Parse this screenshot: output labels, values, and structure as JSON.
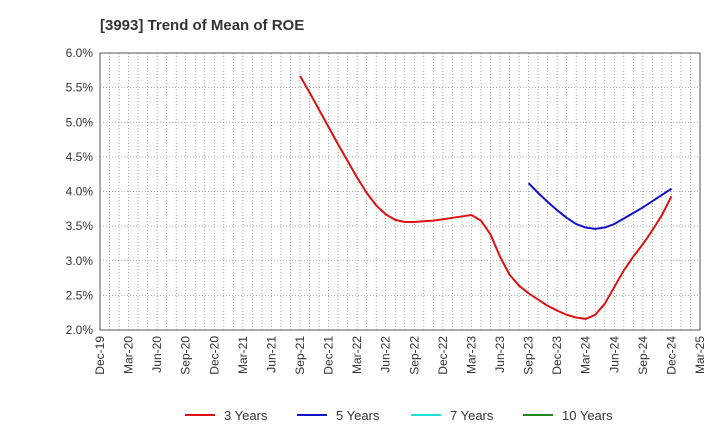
{
  "chart_data": {
    "type": "line",
    "title": "[3993]  Trend of Mean of ROE",
    "xlabel": "",
    "ylabel": "",
    "x_tick_labels": [
      "Dec-19",
      "Mar-20",
      "Jun-20",
      "Sep-20",
      "Dec-20",
      "Mar-21",
      "Jun-21",
      "Sep-21",
      "Dec-21",
      "Mar-22",
      "Jun-22",
      "Sep-22",
      "Dec-22",
      "Mar-23",
      "Jun-23",
      "Sep-23",
      "Dec-23",
      "Mar-24",
      "Jun-24",
      "Sep-24",
      "Dec-24",
      "Mar-25"
    ],
    "y_tick_labels": [
      "2.0%",
      "2.5%",
      "3.0%",
      "3.5%",
      "4.0%",
      "4.5%",
      "5.0%",
      "5.5%",
      "6.0%"
    ],
    "ylim": [
      2.0,
      6.0
    ],
    "grid": true,
    "legend_position": "bottom",
    "series": [
      {
        "name": "3 Years",
        "color": "#dd1111",
        "points": [
          [
            "Sep-21",
            5.67
          ],
          [
            "Oct-21",
            5.43
          ],
          [
            "Nov-21",
            5.18
          ],
          [
            "Dec-21",
            4.93
          ],
          [
            "Jan-22",
            4.68
          ],
          [
            "Feb-22",
            4.44
          ],
          [
            "Mar-22",
            4.2
          ],
          [
            "Apr-22",
            3.98
          ],
          [
            "May-22",
            3.8
          ],
          [
            "Jun-22",
            3.67
          ],
          [
            "Jul-22",
            3.59
          ],
          [
            "Aug-22",
            3.56
          ],
          [
            "Sep-22",
            3.56
          ],
          [
            "Oct-22",
            3.57
          ],
          [
            "Nov-22",
            3.58
          ],
          [
            "Dec-22",
            3.6
          ],
          [
            "Jan-23",
            3.62
          ],
          [
            "Feb-23",
            3.64
          ],
          [
            "Mar-23",
            3.66
          ],
          [
            "Apr-23",
            3.58
          ],
          [
            "May-23",
            3.38
          ],
          [
            "Jun-23",
            3.06
          ],
          [
            "Jul-23",
            2.8
          ],
          [
            "Aug-23",
            2.64
          ],
          [
            "Sep-23",
            2.53
          ],
          [
            "Oct-23",
            2.44
          ],
          [
            "Nov-23",
            2.35
          ],
          [
            "Dec-23",
            2.28
          ],
          [
            "Jan-24",
            2.22
          ],
          [
            "Feb-24",
            2.18
          ],
          [
            "Mar-24",
            2.16
          ],
          [
            "Apr-24",
            2.22
          ],
          [
            "May-24",
            2.38
          ],
          [
            "Jun-24",
            2.62
          ],
          [
            "Jul-24",
            2.86
          ],
          [
            "Aug-24",
            3.06
          ],
          [
            "Sep-24",
            3.24
          ],
          [
            "Oct-24",
            3.44
          ],
          [
            "Nov-24",
            3.66
          ],
          [
            "Dec-24",
            3.93
          ]
        ]
      },
      {
        "name": "5 Years",
        "color": "#1111cc",
        "points": [
          [
            "Sep-23",
            4.12
          ],
          [
            "Oct-23",
            3.98
          ],
          [
            "Nov-23",
            3.85
          ],
          [
            "Dec-23",
            3.73
          ],
          [
            "Jan-24",
            3.62
          ],
          [
            "Feb-24",
            3.53
          ],
          [
            "Mar-24",
            3.48
          ],
          [
            "Apr-24",
            3.46
          ],
          [
            "May-24",
            3.48
          ],
          [
            "Jun-24",
            3.53
          ],
          [
            "Jul-24",
            3.61
          ],
          [
            "Aug-24",
            3.69
          ],
          [
            "Sep-24",
            3.77
          ],
          [
            "Oct-24",
            3.86
          ],
          [
            "Nov-24",
            3.95
          ],
          [
            "Dec-24",
            4.04
          ]
        ]
      },
      {
        "name": "7 Years",
        "color": "#22dddd",
        "points": []
      },
      {
        "name": "10 Years",
        "color": "#228822",
        "points": []
      }
    ]
  }
}
